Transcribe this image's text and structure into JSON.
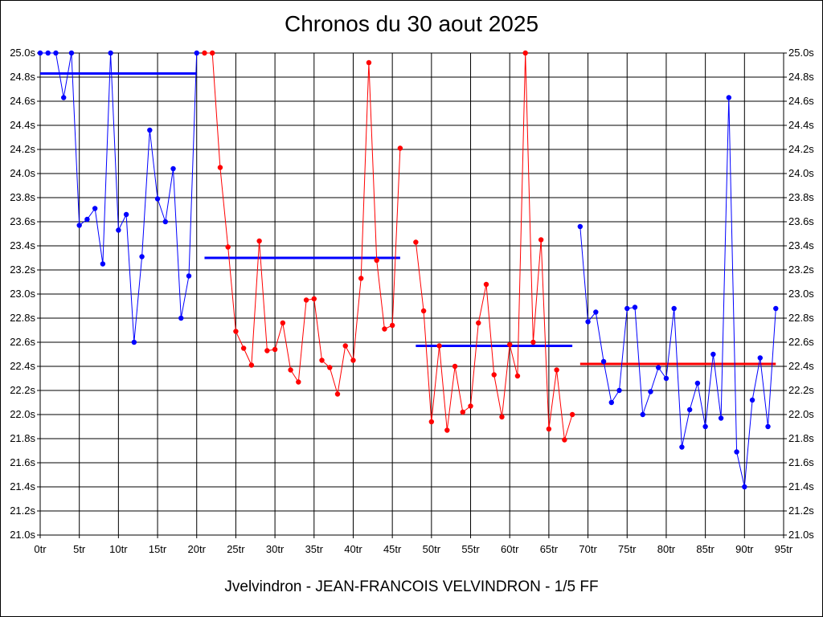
{
  "chart_data": {
    "type": "line",
    "title": "Chronos du 30 aout 2025",
    "footer": "Jvelvindron - JEAN-FRANCOIS VELVINDRON - 1/5 FF",
    "xlabel": "",
    "ylabel": "",
    "xlim": [
      0,
      95
    ],
    "ylim": [
      21.0,
      25.0
    ],
    "grid": true,
    "x_ticks": [
      {
        "value": 0,
        "label": "0tr"
      },
      {
        "value": 5,
        "label": "5tr"
      },
      {
        "value": 10,
        "label": "10tr"
      },
      {
        "value": 15,
        "label": "15tr"
      },
      {
        "value": 20,
        "label": "20tr"
      },
      {
        "value": 25,
        "label": "25tr"
      },
      {
        "value": 30,
        "label": "30tr"
      },
      {
        "value": 35,
        "label": "35tr"
      },
      {
        "value": 40,
        "label": "40tr"
      },
      {
        "value": 45,
        "label": "45tr"
      },
      {
        "value": 50,
        "label": "50tr"
      },
      {
        "value": 55,
        "label": "55tr"
      },
      {
        "value": 60,
        "label": "60tr"
      },
      {
        "value": 65,
        "label": "65tr"
      },
      {
        "value": 70,
        "label": "70tr"
      },
      {
        "value": 75,
        "label": "75tr"
      },
      {
        "value": 80,
        "label": "80tr"
      },
      {
        "value": 85,
        "label": "85tr"
      },
      {
        "value": 90,
        "label": "90tr"
      },
      {
        "value": 95,
        "label": "95tr"
      }
    ],
    "y_ticks": [
      {
        "value": 21.0,
        "label": "21.0s"
      },
      {
        "value": 21.2,
        "label": "21.2s"
      },
      {
        "value": 21.4,
        "label": "21.4s"
      },
      {
        "value": 21.6,
        "label": "21.6s"
      },
      {
        "value": 21.8,
        "label": "21.8s"
      },
      {
        "value": 22.0,
        "label": "22.0s"
      },
      {
        "value": 22.2,
        "label": "22.2s"
      },
      {
        "value": 22.4,
        "label": "22.4s"
      },
      {
        "value": 22.6,
        "label": "22.6s"
      },
      {
        "value": 22.8,
        "label": "22.8s"
      },
      {
        "value": 23.0,
        "label": "23.0s"
      },
      {
        "value": 23.2,
        "label": "23.2s"
      },
      {
        "value": 23.4,
        "label": "23.4s"
      },
      {
        "value": 23.6,
        "label": "23.6s"
      },
      {
        "value": 23.8,
        "label": "23.8s"
      },
      {
        "value": 24.0,
        "label": "24.0s"
      },
      {
        "value": 24.2,
        "label": "24.2s"
      },
      {
        "value": 24.4,
        "label": "24.4s"
      },
      {
        "value": 24.6,
        "label": "24.6s"
      },
      {
        "value": 24.8,
        "label": "24.8s"
      },
      {
        "value": 25.0,
        "label": "25.0s"
      }
    ],
    "series": [
      {
        "color": "#0000ff",
        "points": [
          [
            0,
            25.0
          ],
          [
            1,
            25.0
          ],
          [
            2,
            25.0
          ],
          [
            3,
            24.63
          ],
          [
            4,
            25.0
          ],
          [
            5,
            23.57
          ],
          [
            6,
            23.62
          ],
          [
            7,
            23.71
          ],
          [
            8,
            23.25
          ],
          [
            9,
            25.0
          ],
          [
            10,
            23.53
          ],
          [
            11,
            23.66
          ],
          [
            12,
            22.6
          ],
          [
            13,
            23.31
          ],
          [
            14,
            24.36
          ],
          [
            15,
            23.79
          ],
          [
            16,
            23.6
          ],
          [
            17,
            24.04
          ],
          [
            18,
            22.8
          ],
          [
            19,
            23.15
          ],
          [
            20,
            25.0
          ]
        ],
        "average": 24.83,
        "avg_range": [
          0,
          20
        ]
      },
      {
        "color": "#ff0000",
        "points": [
          [
            21,
            25.0
          ],
          [
            22,
            25.0
          ],
          [
            23,
            24.05
          ],
          [
            24,
            23.39
          ],
          [
            25,
            22.69
          ],
          [
            26,
            22.55
          ],
          [
            27,
            22.41
          ],
          [
            28,
            23.44
          ],
          [
            29,
            22.53
          ],
          [
            30,
            22.54
          ],
          [
            31,
            22.76
          ],
          [
            32,
            22.37
          ],
          [
            33,
            22.27
          ],
          [
            34,
            22.95
          ],
          [
            35,
            22.96
          ],
          [
            36,
            22.45
          ],
          [
            37,
            22.39
          ],
          [
            38,
            22.17
          ],
          [
            39,
            22.57
          ],
          [
            40,
            22.45
          ],
          [
            41,
            23.13
          ],
          [
            42,
            24.92
          ],
          [
            43,
            23.28
          ],
          [
            44,
            22.71
          ],
          [
            45,
            22.74
          ],
          [
            46,
            24.21
          ]
        ],
        "average": 23.3,
        "average_color": "#0000ff",
        "avg_range": [
          21,
          46
        ]
      },
      {
        "color": "#ff0000",
        "points": [
          [
            48,
            23.43
          ],
          [
            49,
            22.86
          ],
          [
            50,
            21.94
          ],
          [
            51,
            22.57
          ],
          [
            52,
            21.87
          ],
          [
            53,
            22.4
          ],
          [
            54,
            22.02
          ],
          [
            55,
            22.07
          ],
          [
            56,
            22.76
          ],
          [
            57,
            23.08
          ],
          [
            58,
            22.33
          ],
          [
            59,
            21.98
          ],
          [
            60,
            22.58
          ],
          [
            61,
            22.32
          ],
          [
            62,
            25.0
          ],
          [
            63,
            22.6
          ],
          [
            64,
            23.45
          ],
          [
            65,
            21.88
          ],
          [
            66,
            22.37
          ],
          [
            67,
            21.79
          ],
          [
            68,
            22.0
          ]
        ],
        "average": 22.57,
        "average_color": "#0000ff",
        "avg_range": [
          48,
          68
        ]
      },
      {
        "color": "#0000ff",
        "points": [
          [
            69,
            23.56
          ],
          [
            70,
            22.77
          ],
          [
            71,
            22.85
          ],
          [
            72,
            22.44
          ],
          [
            73,
            22.1
          ],
          [
            74,
            22.2
          ],
          [
            75,
            22.88
          ],
          [
            76,
            22.89
          ],
          [
            77,
            22.0
          ],
          [
            78,
            22.19
          ],
          [
            79,
            22.39
          ],
          [
            80,
            22.3
          ],
          [
            81,
            22.88
          ],
          [
            82,
            21.73
          ],
          [
            83,
            22.04
          ],
          [
            84,
            22.26
          ],
          [
            85,
            21.9
          ],
          [
            86,
            22.5
          ],
          [
            87,
            21.97
          ],
          [
            88,
            24.63
          ],
          [
            89,
            21.69
          ],
          [
            90,
            21.4
          ],
          [
            91,
            22.12
          ],
          [
            92,
            22.47
          ],
          [
            93,
            21.9
          ],
          [
            94,
            22.88
          ]
        ],
        "average": 22.42,
        "average_color": "#ff0000",
        "avg_range": [
          69,
          94
        ]
      }
    ]
  }
}
